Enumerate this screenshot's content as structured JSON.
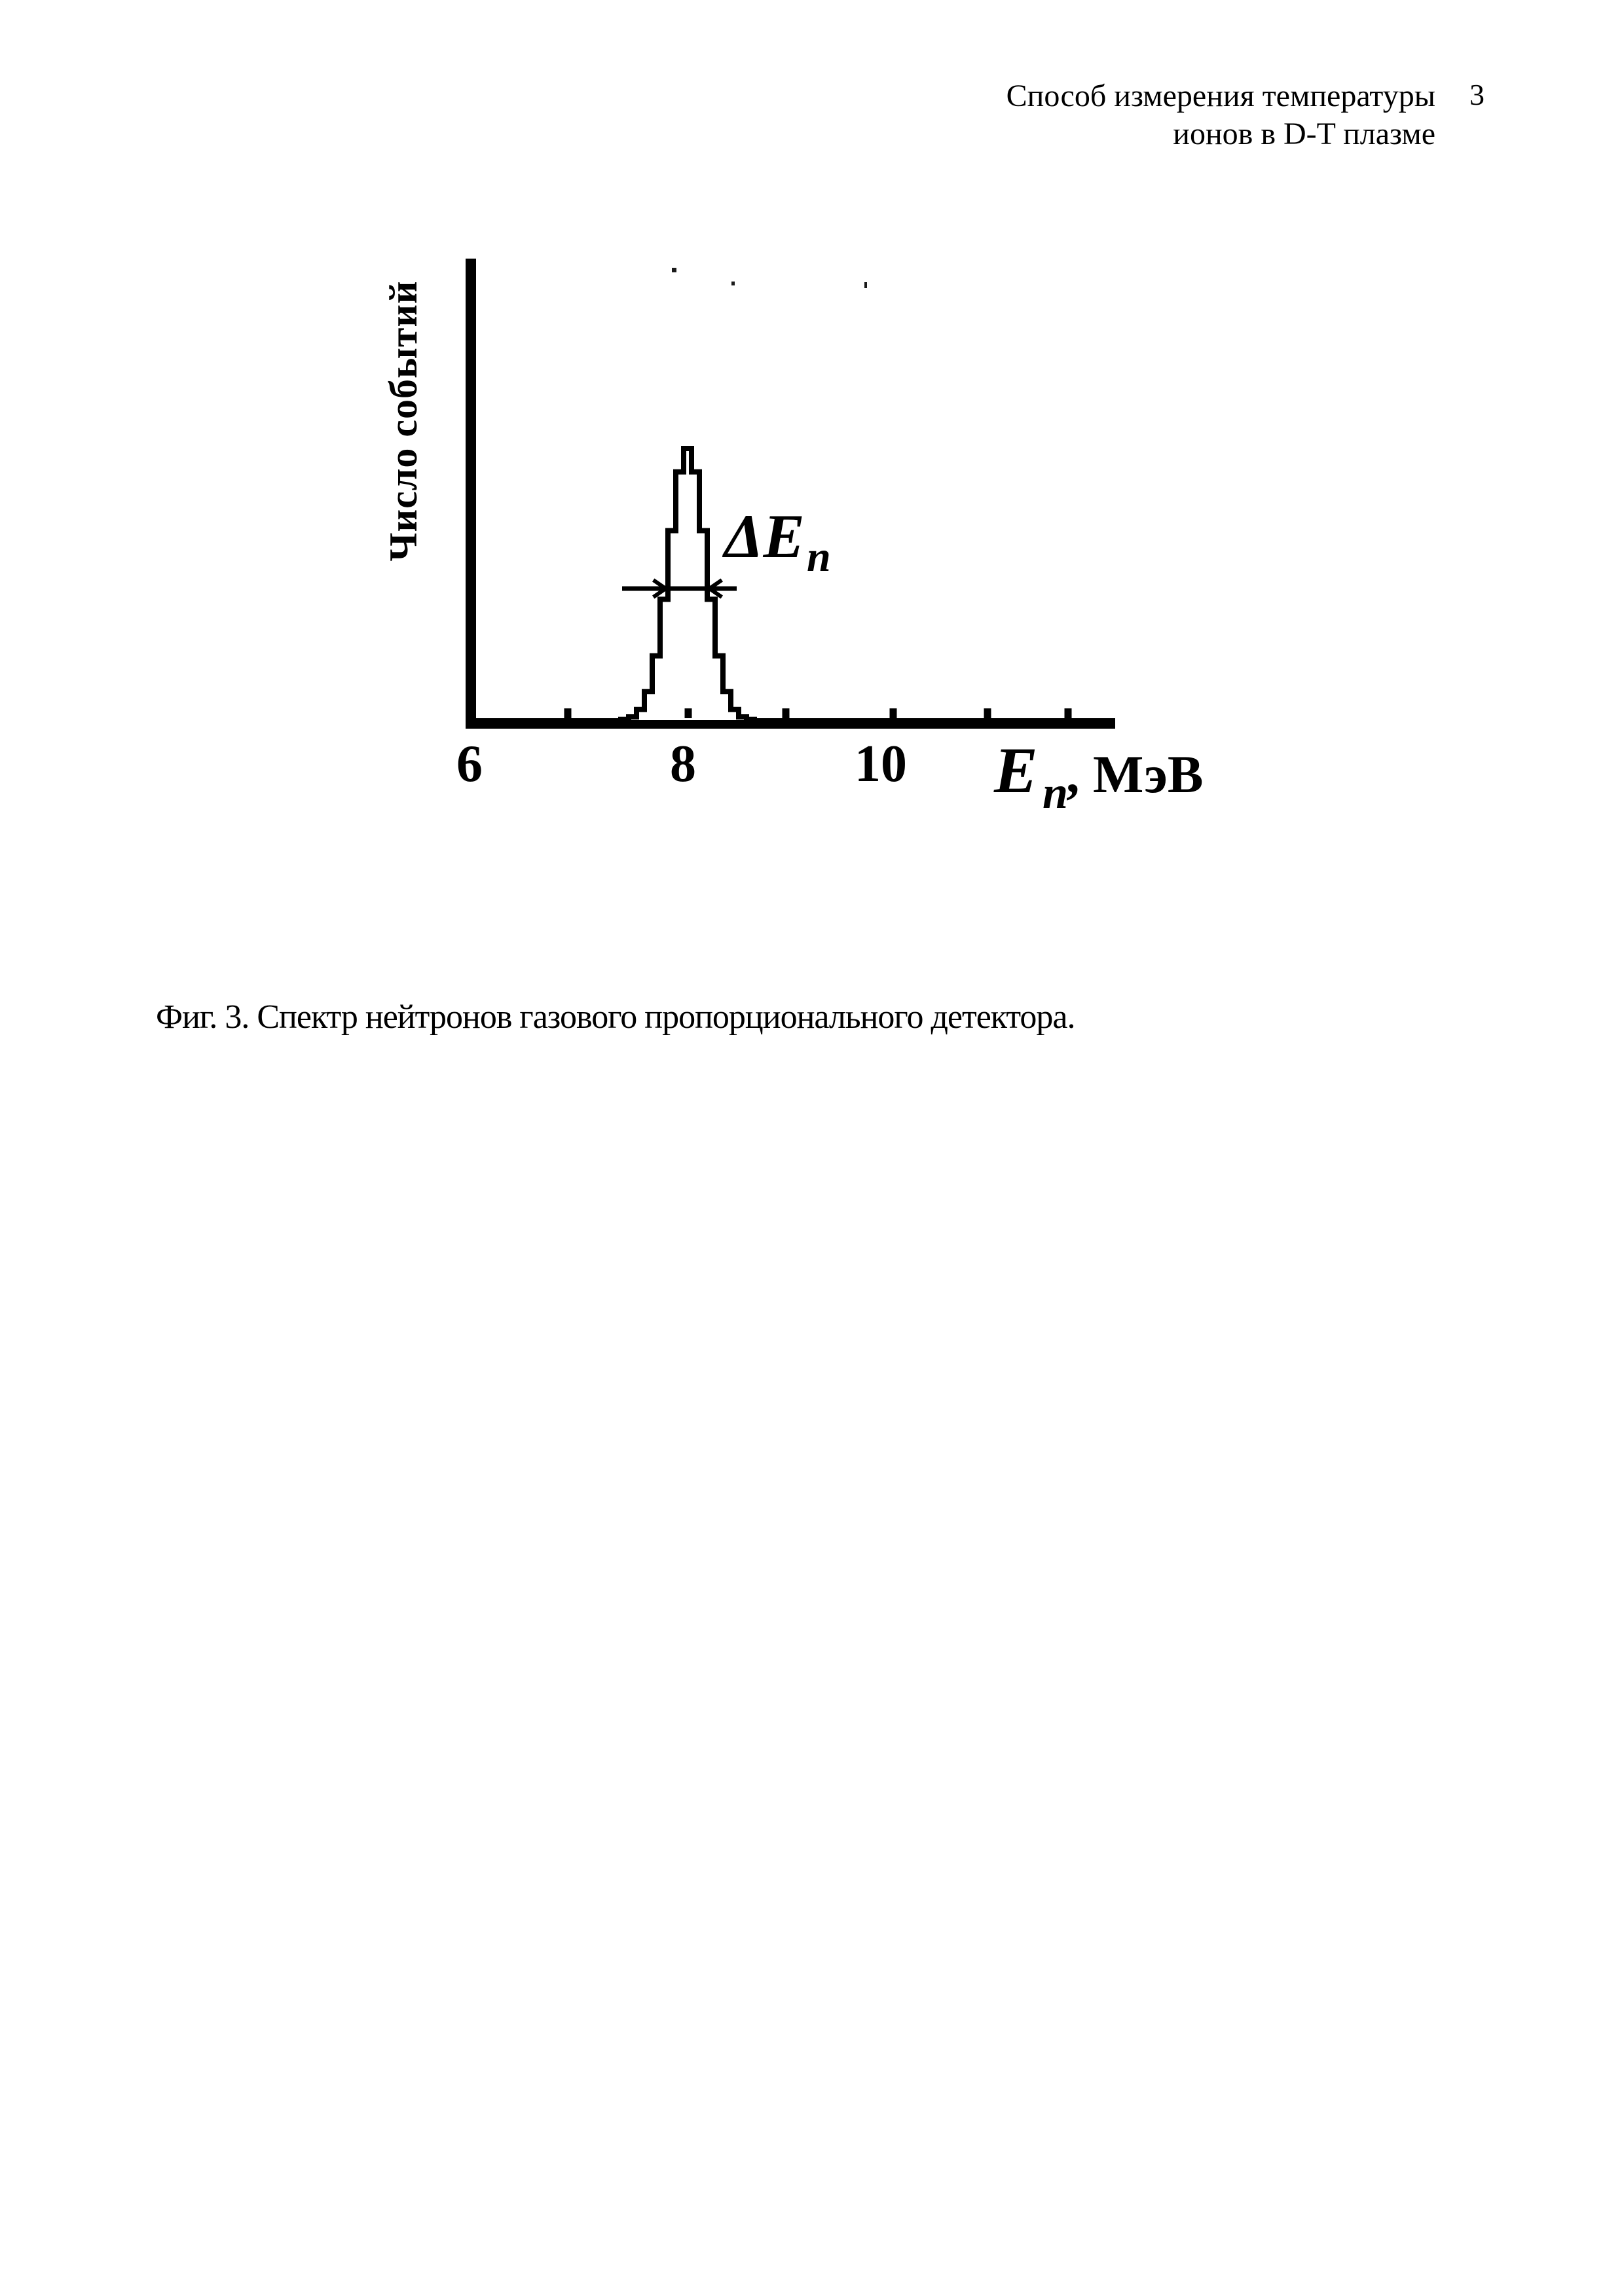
{
  "header": {
    "line1": "Способ измерения температуры",
    "line2": "ионов в D-T плазме",
    "page_number": "3"
  },
  "caption": "Фиг. 3. Спектр нейтронов газового пропорционального детектора.",
  "chart_data": {
    "type": "line",
    "title": "",
    "xlabel": "En, МэВ",
    "ylabel": "Число событий",
    "xaxis_label": {
      "symbol": "E",
      "sub": "n",
      "unit": ", МэВ"
    },
    "x_tick_labels": [
      "6",
      "8",
      "10"
    ],
    "x_tick_values_labeled": [
      6,
      8,
      10
    ],
    "x_tick_values_minor": [
      7,
      8,
      9,
      10,
      11,
      12
    ],
    "x_range_mev": [
      6,
      12
    ],
    "y_range_relative": [
      0,
      1
    ],
    "grid": false,
    "legend": false,
    "annotation": {
      "label": "ΔE",
      "sub": "n"
    },
    "peak": {
      "center_mev": 8.0,
      "fwhm_mev": 0.4,
      "height_relative": 1.0
    },
    "series": [
      {
        "name": "Спектр нейтронов",
        "x_mev": [
          7.4,
          7.5,
          7.6,
          7.7,
          7.8,
          7.9,
          8.0,
          8.1,
          8.2,
          8.3,
          8.4,
          8.5,
          8.6
        ],
        "y_relative": [
          0.002,
          0.013,
          0.063,
          0.211,
          0.5,
          0.841,
          1.0,
          0.841,
          0.5,
          0.211,
          0.063,
          0.013,
          0.002
        ]
      }
    ]
  }
}
